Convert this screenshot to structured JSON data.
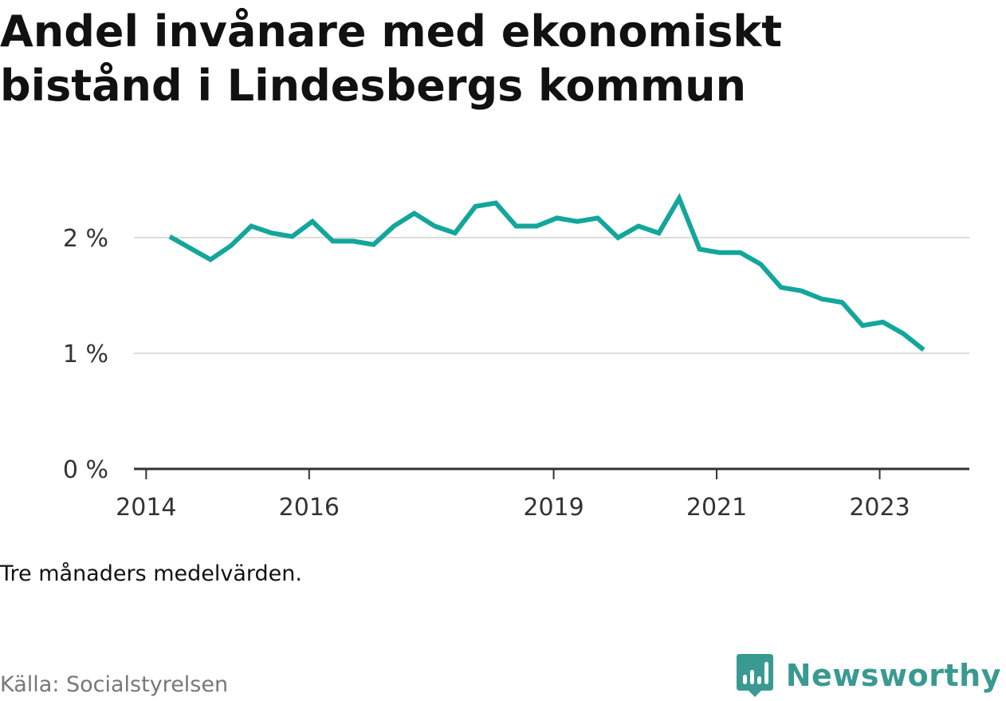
{
  "title_lines": [
    "Andel invånare med ekonomiskt",
    "bistånd i Lindesbergs kommun"
  ],
  "note": "Tre månaders medelvärden.",
  "source": "Källa: Socialstyrelsen",
  "brand": {
    "name": "Newsworthy",
    "logo_icon": "bar-chart-speech-bubble-icon",
    "color": "#3a9a92"
  },
  "chart_data": {
    "type": "line",
    "title": "Andel invånare med ekonomiskt bistånd i Lindesbergs kommun",
    "xlabel": "",
    "ylabel": "",
    "x_ticks": [
      "2014",
      "2016",
      "2019",
      "2021",
      "2023"
    ],
    "x_tick_values": [
      2014.0,
      2016.0,
      2019.0,
      2021.0,
      2023.0
    ],
    "y_ticks": [
      "0 %",
      "1 %",
      "2 %"
    ],
    "y_tick_values": [
      0,
      1,
      2
    ],
    "xlim": [
      2013.85,
      2024.1
    ],
    "ylim": [
      0,
      2.4
    ],
    "grid": true,
    "line_color": "#13a69b",
    "series": [
      {
        "x": [
          2014.29,
          2014.54,
          2014.79,
          2015.04,
          2015.29,
          2015.54,
          2015.79,
          2016.04,
          2016.29,
          2016.54,
          2016.79,
          2017.04,
          2017.29,
          2017.54,
          2017.79,
          2018.04,
          2018.29,
          2018.54,
          2018.79,
          2019.04,
          2019.29,
          2019.54,
          2019.79,
          2020.04,
          2020.29,
          2020.54,
          2020.79,
          2021.04,
          2021.29,
          2021.54,
          2021.79,
          2022.04,
          2022.29,
          2022.54,
          2022.79,
          2023.04,
          2023.29,
          2023.54
        ],
        "values": [
          2.01,
          1.91,
          1.81,
          1.93,
          2.1,
          2.04,
          2.01,
          2.14,
          1.97,
          1.97,
          1.94,
          2.1,
          2.21,
          2.1,
          2.04,
          2.27,
          2.3,
          2.1,
          2.1,
          2.17,
          2.14,
          2.17,
          2.0,
          2.1,
          2.04,
          2.34,
          1.9,
          1.87,
          1.87,
          1.77,
          1.57,
          1.54,
          1.47,
          1.44,
          1.24,
          1.27,
          1.17,
          1.03
        ]
      }
    ]
  }
}
